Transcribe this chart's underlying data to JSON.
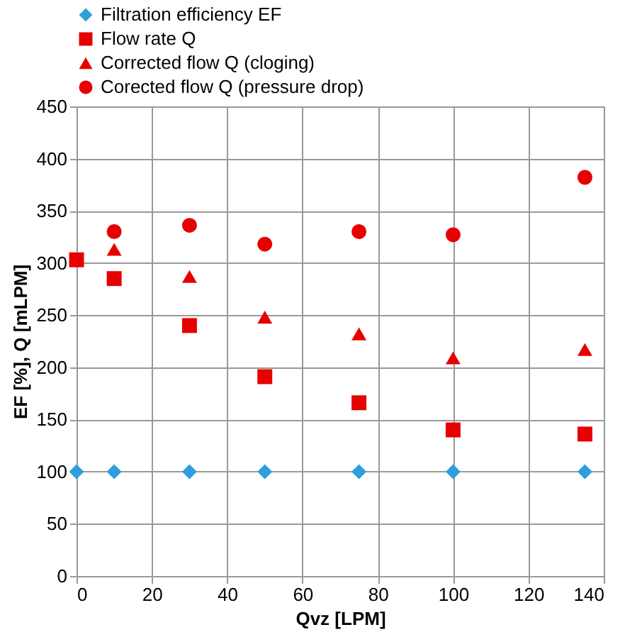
{
  "chart_data": {
    "type": "scatter",
    "xlabel": "Qvz [LPM]",
    "ylabel": "EF [%], Q [mLPM]",
    "x": [
      0,
      10,
      30,
      50,
      75,
      100,
      135
    ],
    "series": [
      {
        "name": "Filtration efficiency EF",
        "color": "#2e9fdc",
        "marker": "diamond",
        "values": [
          100,
          100,
          100,
          100,
          100,
          100,
          100
        ]
      },
      {
        "name": "Flow rate Q",
        "color": "#e60000",
        "marker": "square",
        "values": [
          303,
          285,
          240,
          191,
          166,
          140,
          136
        ]
      },
      {
        "name": "Corrected flow Q (cloging)",
        "color": "#e60000",
        "marker": "triangle",
        "values": [
          null,
          313,
          287,
          248,
          232,
          209,
          217
        ]
      },
      {
        "name": "Corected flow Q (pressure drop)",
        "color": "#e60000",
        "marker": "circle",
        "values": [
          null,
          330,
          336,
          318,
          330,
          327,
          382
        ]
      }
    ],
    "xlim": [
      0,
      140
    ],
    "xticks": [
      0,
      20,
      40,
      60,
      80,
      100,
      120,
      140
    ],
    "ylim": [
      0,
      450
    ],
    "yticks": [
      0,
      50,
      100,
      150,
      200,
      250,
      300,
      350,
      400,
      450
    ],
    "grid": true,
    "legend": "top"
  }
}
